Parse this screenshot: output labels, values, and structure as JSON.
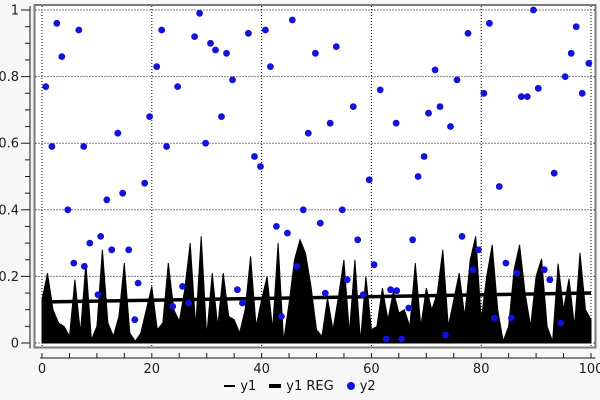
{
  "colors": {
    "page_bg": "#f7f7f7",
    "plot_bg": "#ffffff",
    "frame": "#7a7a7a",
    "axis": "#1a1a1a",
    "grid": "#000000",
    "tick_label": "#1a1a1a",
    "y1": "#000000",
    "y1_reg": "#000000",
    "y2": "#1212dd"
  },
  "legend": {
    "items": [
      {
        "label": "y1",
        "symbol": "line"
      },
      {
        "label": "y1 REG",
        "symbol": "thick-line"
      },
      {
        "label": "y2",
        "symbol": "dot"
      }
    ]
  },
  "chart_data": {
    "type": "combo",
    "title": "",
    "xlabel": "",
    "ylabel": "",
    "xlim": [
      0,
      100
    ],
    "ylim": [
      0,
      1
    ],
    "grid": "dotted",
    "legend_position": "bottom-center",
    "x_ticks_major": [
      0,
      20,
      40,
      60,
      80,
      100
    ],
    "x_tick_labels": [
      "0",
      "20",
      "40",
      "60",
      "80",
      "100"
    ],
    "x_tick_minor_step": 5,
    "y_ticks_major": [
      0,
      0.2,
      0.4,
      0.6,
      0.8,
      1
    ],
    "y_tick_labels": [
      "0",
      "0.2",
      "0.4",
      "0.6",
      "0.8",
      "1"
    ],
    "y_tick_minor_step": 0.05,
    "series": [
      {
        "name": "y1",
        "type": "area",
        "color": "#000000",
        "x_start": 0,
        "x_step": 1,
        "values": [
          0.13,
          0.21,
          0.1,
          0.06,
          0.05,
          0.02,
          0.19,
          0.03,
          0.24,
          0.01,
          0.05,
          0.28,
          0.06,
          0.02,
          0.08,
          0.24,
          0.03,
          0.005,
          0.03,
          0.1,
          0.17,
          0.04,
          0.06,
          0.24,
          0.1,
          0.065,
          0.16,
          0.3,
          0.05,
          0.32,
          0.02,
          0.21,
          0.05,
          0.21,
          0.08,
          0.07,
          0.03,
          0.1,
          0.26,
          0.05,
          0.13,
          0.2,
          0.04,
          0.3,
          0.005,
          0.12,
          0.25,
          0.31,
          0.27,
          0.17,
          0.04,
          0.02,
          0.135,
          0.04,
          0.14,
          0.25,
          0.03,
          0.25,
          0.005,
          0.2,
          0.04,
          0.05,
          0.165,
          0.07,
          0.155,
          0.09,
          0.1,
          0.05,
          0.24,
          0.05,
          0.165,
          0.1,
          0.15,
          0.28,
          0.05,
          0.13,
          0.21,
          0.08,
          0.25,
          0.32,
          0.07,
          0.2,
          0.295,
          0.1,
          0.005,
          0.05,
          0.22,
          0.295,
          0.15,
          0.05,
          0.2,
          0.253,
          0.05,
          0.005,
          0.238,
          0.1,
          0.193,
          0.05,
          0.271,
          0.1,
          0.07
        ]
      },
      {
        "name": "y1 REG",
        "type": "line",
        "color": "#000000",
        "stroke_width": 3.5,
        "points": [
          [
            0,
            0.123
          ],
          [
            100,
            0.15
          ]
        ]
      },
      {
        "name": "y2",
        "type": "scatter",
        "color": "#1212dd",
        "marker_radius": 3.4,
        "points": [
          [
            0.7,
            0.77
          ],
          [
            1.8,
            0.59
          ],
          [
            2.7,
            0.96
          ],
          [
            3.6,
            0.86
          ],
          [
            4.7,
            0.4
          ],
          [
            5.8,
            0.24
          ],
          [
            6.7,
            0.94
          ],
          [
            7.6,
            0.59
          ],
          [
            7.7,
            0.23
          ],
          [
            8.7,
            0.3
          ],
          [
            10.2,
            0.145
          ],
          [
            10.7,
            0.32
          ],
          [
            11.8,
            0.43
          ],
          [
            12.7,
            0.28
          ],
          [
            13.8,
            0.63
          ],
          [
            14.7,
            0.45
          ],
          [
            15.8,
            0.28
          ],
          [
            16.9,
            0.07
          ],
          [
            17.5,
            0.18
          ],
          [
            18.7,
            0.48
          ],
          [
            19.6,
            0.68
          ],
          [
            20.9,
            0.83
          ],
          [
            21.8,
            0.94
          ],
          [
            22.7,
            0.59
          ],
          [
            23.8,
            0.11
          ],
          [
            24.7,
            0.77
          ],
          [
            25.6,
            0.17
          ],
          [
            26.7,
            0.12
          ],
          [
            27.8,
            0.92
          ],
          [
            28.7,
            0.99
          ],
          [
            29.8,
            0.6
          ],
          [
            30.7,
            0.9
          ],
          [
            31.6,
            0.88
          ],
          [
            32.7,
            0.68
          ],
          [
            33.6,
            0.87
          ],
          [
            34.7,
            0.79
          ],
          [
            35.6,
            0.16
          ],
          [
            36.5,
            0.12
          ],
          [
            37.6,
            0.93
          ],
          [
            38.7,
            0.56
          ],
          [
            39.8,
            0.53
          ],
          [
            40.7,
            0.94
          ],
          [
            41.6,
            0.83
          ],
          [
            42.7,
            0.35
          ],
          [
            43.6,
            0.08
          ],
          [
            44.7,
            0.33
          ],
          [
            45.6,
            0.97
          ],
          [
            46.4,
            0.23
          ],
          [
            47.6,
            0.4
          ],
          [
            48.5,
            0.63
          ],
          [
            49.8,
            0.87
          ],
          [
            50.7,
            0.36
          ],
          [
            51.6,
            0.15
          ],
          [
            52.5,
            0.66
          ],
          [
            53.6,
            0.89
          ],
          [
            54.7,
            0.4
          ],
          [
            55.6,
            0.19
          ],
          [
            56.7,
            0.71
          ],
          [
            57.5,
            0.31
          ],
          [
            58.5,
            0.145
          ],
          [
            59.6,
            0.49
          ],
          [
            60.5,
            0.235
          ],
          [
            61.6,
            0.76
          ],
          [
            62.7,
            0.012
          ],
          [
            63.5,
            0.16
          ],
          [
            64.5,
            0.66
          ],
          [
            64.6,
            0.157
          ],
          [
            65.5,
            0.012
          ],
          [
            66.8,
            0.105
          ],
          [
            67.5,
            0.31
          ],
          [
            68.5,
            0.5
          ],
          [
            69.6,
            0.56
          ],
          [
            70.4,
            0.69
          ],
          [
            71.6,
            0.82
          ],
          [
            72.5,
            0.71
          ],
          [
            73.5,
            0.024
          ],
          [
            74.4,
            0.65
          ],
          [
            75.6,
            0.79
          ],
          [
            76.5,
            0.32
          ],
          [
            77.6,
            0.93
          ],
          [
            78.5,
            0.22
          ],
          [
            79.5,
            0.28
          ],
          [
            80.5,
            0.75
          ],
          [
            81.5,
            0.96
          ],
          [
            82.4,
            0.075
          ],
          [
            83.3,
            0.47
          ],
          [
            84.5,
            0.24
          ],
          [
            85.5,
            0.075
          ],
          [
            86.5,
            0.21
          ],
          [
            87.3,
            0.74
          ],
          [
            88.4,
            0.74
          ],
          [
            89.5,
            1.0
          ],
          [
            90.4,
            0.765
          ],
          [
            91.5,
            0.22
          ],
          [
            92.5,
            0.19
          ],
          [
            93.3,
            0.51
          ],
          [
            94.5,
            0.06
          ],
          [
            95.3,
            0.8
          ],
          [
            96.4,
            0.87
          ],
          [
            97.3,
            0.95
          ],
          [
            98.4,
            0.75
          ],
          [
            99.6,
            0.84
          ]
        ]
      }
    ]
  }
}
